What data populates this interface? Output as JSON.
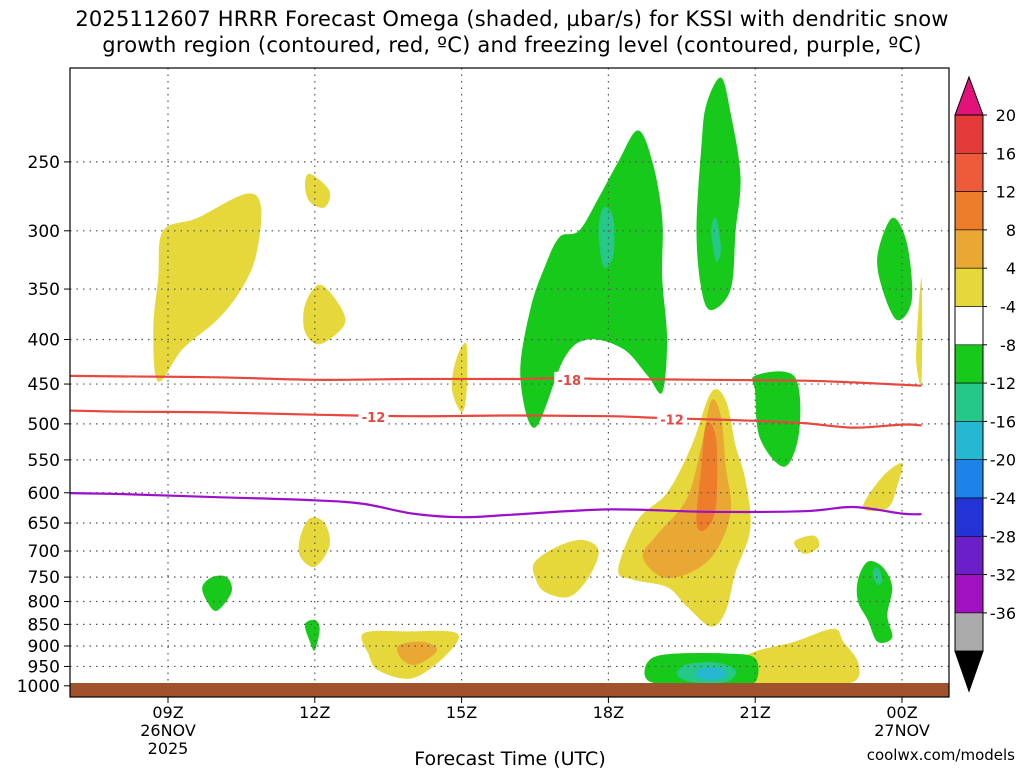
{
  "title_line1": "2025112607 HRRR Forecast Omega (shaded, µbar/s) for KSSI with dendritic snow",
  "title_line2": "growth region (contoured, red, ºC) and freezing level (contoured, purple, ºC)",
  "credit": "coolwx.com/models",
  "colors": {
    "grid": "#555555",
    "isotherm": "#e8473f",
    "freezing_level": "#9b10c8",
    "terrain": "#a0522d"
  },
  "chart_data": {
    "type": "heatmap",
    "xlabel": "Forecast Time (UTC)",
    "ylabel": "",
    "y_axis": "pressure (hPa), inverted",
    "ylim": [
      1030,
      200
    ],
    "xlim_hours": [
      6.5,
      24.4
    ],
    "y_ticks": [
      250,
      300,
      350,
      400,
      450,
      500,
      550,
      600,
      650,
      700,
      750,
      800,
      850,
      900,
      950,
      1000
    ],
    "x_ticks": [
      {
        "hour": 9,
        "label": "09Z",
        "sub1": "26NOV",
        "sub2": "2025"
      },
      {
        "hour": 12,
        "label": "12Z",
        "sub1": "",
        "sub2": ""
      },
      {
        "hour": 15,
        "label": "15Z",
        "sub1": "",
        "sub2": ""
      },
      {
        "hour": 18,
        "label": "18Z",
        "sub1": "",
        "sub2": ""
      },
      {
        "hour": 21,
        "label": "21Z",
        "sub1": "",
        "sub2": ""
      },
      {
        "hour": 24,
        "label": "00Z",
        "sub1": "27NOV",
        "sub2": ""
      }
    ],
    "colorbar": {
      "labels": [
        "20",
        "16",
        "12",
        "8",
        "4",
        "-4",
        "-8",
        "-12",
        "-16",
        "-20",
        "-24",
        "-28",
        "-32",
        "-36"
      ],
      "bins": [
        {
          "color": "#e43a3a"
        },
        {
          "color": "#ee5b3a"
        },
        {
          "color": "#ed7d2b"
        },
        {
          "color": "#e9a834"
        },
        {
          "color": "#e6d73a"
        },
        {
          "color": "#ffffff"
        },
        {
          "color": "#16c91a"
        },
        {
          "color": "#26c889"
        },
        {
          "color": "#25b8d0"
        },
        {
          "color": "#1d82ea"
        },
        {
          "color": "#2333d6"
        },
        {
          "color": "#6a1fc8"
        },
        {
          "color": "#a012c1"
        },
        {
          "color": "#aaaaaa"
        }
      ],
      "top_color": "#e2127a",
      "bottom_color": "#000000"
    },
    "contours": [
      {
        "label": "-18",
        "color": "#e8473f",
        "points": [
          [
            6.5,
            440
          ],
          [
            8,
            441
          ],
          [
            10,
            442
          ],
          [
            12,
            445
          ],
          [
            14,
            444
          ],
          [
            16,
            444
          ],
          [
            17,
            443
          ],
          [
            18,
            444
          ],
          [
            20,
            445
          ],
          [
            22,
            446
          ],
          [
            23,
            448
          ],
          [
            24.4,
            452
          ]
        ],
        "label_at": [
          [
            17.2,
            445
          ]
        ]
      },
      {
        "label": "-12",
        "color": "#e8473f",
        "points": [
          [
            6.5,
            482
          ],
          [
            8,
            484
          ],
          [
            10,
            485
          ],
          [
            12,
            488
          ],
          [
            14,
            490
          ],
          [
            16,
            489
          ],
          [
            18,
            490
          ],
          [
            19,
            492
          ],
          [
            20,
            494
          ],
          [
            21,
            496
          ],
          [
            22,
            499
          ],
          [
            23,
            505
          ],
          [
            24,
            501
          ],
          [
            24.4,
            502
          ]
        ],
        "label_at": [
          [
            13.2,
            491
          ],
          [
            19.3,
            494
          ]
        ]
      },
      {
        "label": "0",
        "color": "#9b10c8",
        "points": [
          [
            6.5,
            600
          ],
          [
            8,
            602
          ],
          [
            10,
            607
          ],
          [
            12,
            612
          ],
          [
            13,
            618
          ],
          [
            14,
            634
          ],
          [
            15,
            640
          ],
          [
            16,
            636
          ],
          [
            18,
            627
          ],
          [
            20,
            631
          ],
          [
            22,
            630
          ],
          [
            23,
            623
          ],
          [
            24,
            634
          ],
          [
            24.4,
            635
          ]
        ],
        "label_at": []
      }
    ],
    "regions": [
      {
        "level": "4",
        "color": "#e6d73a",
        "points": [
          [
            8.8,
            447
          ],
          [
            9.3,
            410
          ],
          [
            10,
            380
          ],
          [
            10.5,
            350
          ],
          [
            10.8,
            320
          ],
          [
            10.9,
            282
          ],
          [
            10.6,
            272
          ],
          [
            9.6,
            290
          ],
          [
            8.9,
            300
          ],
          [
            8.8,
            340
          ],
          [
            8.7,
            390
          ]
        ]
      },
      {
        "level": "4",
        "color": "#e6d73a",
        "points": [
          [
            11.9,
            258
          ],
          [
            12.3,
            270
          ],
          [
            12.2,
            282
          ],
          [
            11.9,
            278
          ],
          [
            11.8,
            266
          ]
        ]
      },
      {
        "level": "4",
        "color": "#e6d73a",
        "points": [
          [
            11.8,
            365
          ],
          [
            12.1,
            346
          ],
          [
            12.5,
            365
          ],
          [
            12.6,
            385
          ],
          [
            12.1,
            405
          ],
          [
            11.8,
            392
          ]
        ]
      },
      {
        "level": "4",
        "color": "#e6d73a",
        "points": [
          [
            14.9,
            420
          ],
          [
            15.1,
            405
          ],
          [
            15.1,
            460
          ],
          [
            15,
            485
          ],
          [
            14.8,
            455
          ]
        ]
      },
      {
        "level": "4",
        "color": "#e6d73a",
        "points": [
          [
            11.7,
            675
          ],
          [
            11.9,
            642
          ],
          [
            12.2,
            650
          ],
          [
            12.3,
            690
          ],
          [
            12,
            730
          ],
          [
            11.7,
            710
          ]
        ]
      },
      {
        "level": "4",
        "color": "#e6d73a",
        "points": [
          [
            13,
            870
          ],
          [
            13.9,
            866
          ],
          [
            14.9,
            870
          ],
          [
            14.7,
            920
          ],
          [
            14,
            980
          ],
          [
            13.3,
            960
          ],
          [
            13.1,
            920
          ]
        ]
      },
      {
        "level": "8",
        "color": "#e9a834",
        "points": [
          [
            13.7,
            900
          ],
          [
            14.2,
            890
          ],
          [
            14.5,
            910
          ],
          [
            14.1,
            945
          ],
          [
            13.8,
            935
          ]
        ]
      },
      {
        "level": "4",
        "color": "#e6d73a",
        "points": [
          [
            16.5,
            720
          ],
          [
            17,
            690
          ],
          [
            17.5,
            680
          ],
          [
            17.8,
            700
          ],
          [
            17.6,
            750
          ],
          [
            17.2,
            790
          ],
          [
            16.7,
            780
          ],
          [
            16.5,
            750
          ]
        ]
      },
      {
        "level": "4",
        "color": "#e6d73a",
        "points": [
          [
            18.2,
            735
          ],
          [
            18.6,
            645
          ],
          [
            19.2,
            600
          ],
          [
            19.7,
            530
          ],
          [
            20.1,
            460
          ],
          [
            20.4,
            470
          ],
          [
            20.6,
            530
          ],
          [
            20.8,
            580
          ],
          [
            20.9,
            660
          ],
          [
            20.6,
            740
          ],
          [
            20.4,
            820
          ],
          [
            20.1,
            855
          ],
          [
            19.6,
            810
          ],
          [
            19.2,
            770
          ],
          [
            18.5,
            755
          ]
        ]
      },
      {
        "level": "8",
        "color": "#e9a834",
        "points": [
          [
            18.7,
            710
          ],
          [
            19,
            670
          ],
          [
            19.6,
            610
          ],
          [
            19.9,
            530
          ],
          [
            20.1,
            470
          ],
          [
            20.3,
            490
          ],
          [
            20.4,
            560
          ],
          [
            20.5,
            630
          ],
          [
            20.2,
            700
          ],
          [
            19.7,
            740
          ],
          [
            19.1,
            750
          ]
        ]
      },
      {
        "level": "12",
        "color": "#ed7d2b",
        "points": [
          [
            19.8,
            650
          ],
          [
            19.9,
            560
          ],
          [
            20,
            500
          ],
          [
            20.2,
            520
          ],
          [
            20.2,
            620
          ],
          [
            20,
            660
          ]
        ]
      },
      {
        "level": "4",
        "color": "#e6d73a",
        "points": [
          [
            21.8,
            683
          ],
          [
            22.2,
            672
          ],
          [
            22.3,
            692
          ],
          [
            22,
            705
          ]
        ]
      },
      {
        "level": "4",
        "color": "#e6d73a",
        "points": [
          [
            23.2,
            624
          ],
          [
            23.6,
            575
          ],
          [
            24,
            555
          ],
          [
            23.9,
            590
          ],
          [
            23.7,
            625
          ]
        ]
      },
      {
        "level": "4",
        "color": "#e6d73a",
        "points": [
          [
            20.8,
            925
          ],
          [
            21.8,
            890
          ],
          [
            22.6,
            860
          ],
          [
            22.8,
            890
          ],
          [
            23.1,
            940
          ],
          [
            23,
            990
          ],
          [
            22,
            1000
          ],
          [
            20.8,
            1000
          ]
        ]
      },
      {
        "level": "4",
        "color": "#e6d73a",
        "points": [
          [
            24.3,
            400
          ],
          [
            24.4,
            340
          ],
          [
            24.4,
            445
          ],
          [
            24.3,
            430
          ]
        ]
      },
      {
        "level": "-4",
        "color": "#16c91a",
        "points": [
          [
            16.2,
            440
          ],
          [
            16.4,
            370
          ],
          [
            16.7,
            330
          ],
          [
            17,
            305
          ],
          [
            17.4,
            300
          ],
          [
            17.8,
            275
          ],
          [
            18.2,
            250
          ],
          [
            18.6,
            230
          ],
          [
            18.9,
            250
          ],
          [
            19.1,
            290
          ],
          [
            19.1,
            340
          ],
          [
            19.2,
            400
          ],
          [
            19.1,
            460
          ],
          [
            18.8,
            440
          ],
          [
            18.3,
            410
          ],
          [
            17.6,
            400
          ],
          [
            17.1,
            420
          ],
          [
            16.5,
            505
          ]
        ]
      },
      {
        "level": "-8",
        "color": "#26c889",
        "points": [
          [
            17.8,
            300
          ],
          [
            17.9,
            282
          ],
          [
            18.1,
            290
          ],
          [
            18.1,
            320
          ],
          [
            17.9,
            330
          ]
        ]
      },
      {
        "level": "-4",
        "color": "#16c91a",
        "points": [
          [
            19.8,
            300
          ],
          [
            19.9,
            240
          ],
          [
            20,
            215
          ],
          [
            20.3,
            200
          ],
          [
            20.5,
            220
          ],
          [
            20.7,
            260
          ],
          [
            20.6,
            300
          ],
          [
            20.5,
            350
          ],
          [
            20.1,
            370
          ],
          [
            19.9,
            350
          ]
        ]
      },
      {
        "level": "-8",
        "color": "#26c889",
        "points": [
          [
            20.1,
            300
          ],
          [
            20.2,
            290
          ],
          [
            20.3,
            315
          ],
          [
            20.2,
            325
          ]
        ]
      },
      {
        "level": "-4",
        "color": "#16c91a",
        "points": [
          [
            21,
            460
          ],
          [
            21,
            440
          ],
          [
            21.8,
            441
          ],
          [
            21.9,
            510
          ],
          [
            21.6,
            560
          ],
          [
            21.1,
            520
          ]
        ]
      },
      {
        "level": "-4",
        "color": "#16c91a",
        "points": [
          [
            23.5,
            320
          ],
          [
            23.8,
            290
          ],
          [
            24.1,
            310
          ],
          [
            24.2,
            360
          ],
          [
            23.9,
            380
          ],
          [
            23.6,
            350
          ]
        ]
      },
      {
        "level": "-4",
        "color": "#16c91a",
        "points": [
          [
            23.1,
            755
          ],
          [
            23.3,
            720
          ],
          [
            23.6,
            730
          ],
          [
            23.8,
            770
          ],
          [
            23.7,
            830
          ],
          [
            23.8,
            880
          ],
          [
            23.5,
            890
          ],
          [
            23.3,
            840
          ],
          [
            23.1,
            800
          ]
        ]
      },
      {
        "level": "-8",
        "color": "#26c889",
        "points": [
          [
            23.4,
            742
          ],
          [
            23.5,
            730
          ],
          [
            23.6,
            755
          ],
          [
            23.5,
            765
          ]
        ]
      },
      {
        "level": "-4",
        "color": "#16c91a",
        "points": [
          [
            9.7,
            770
          ],
          [
            9.9,
            750
          ],
          [
            10.2,
            750
          ],
          [
            10.3,
            780
          ],
          [
            10,
            820
          ],
          [
            9.8,
            800
          ]
        ]
      },
      {
        "level": "-4",
        "color": "#16c91a",
        "points": [
          [
            11.8,
            850
          ],
          [
            12,
            840
          ],
          [
            12.1,
            860
          ],
          [
            12,
            910
          ],
          [
            11.9,
            890
          ]
        ]
      },
      {
        "level": "-4",
        "color": "#16c91a",
        "points": [
          [
            19.2,
            920
          ],
          [
            20.4,
            918
          ],
          [
            21,
            930
          ],
          [
            21,
            990
          ],
          [
            20.5,
            1000
          ],
          [
            19.4,
            1000
          ],
          [
            18.8,
            985
          ],
          [
            18.8,
            940
          ]
        ]
      },
      {
        "level": "-8",
        "color": "#26c889",
        "points": [
          [
            19.6,
            945
          ],
          [
            20.2,
            940
          ],
          [
            20.6,
            960
          ],
          [
            20.4,
            990
          ],
          [
            19.7,
            990
          ],
          [
            19.4,
            970
          ]
        ]
      },
      {
        "level": "-12",
        "color": "#25b8d0",
        "points": [
          [
            19.9,
            955
          ],
          [
            20.3,
            955
          ],
          [
            20.4,
            975
          ],
          [
            20.1,
            985
          ],
          [
            19.8,
            975
          ]
        ]
      }
    ]
  }
}
